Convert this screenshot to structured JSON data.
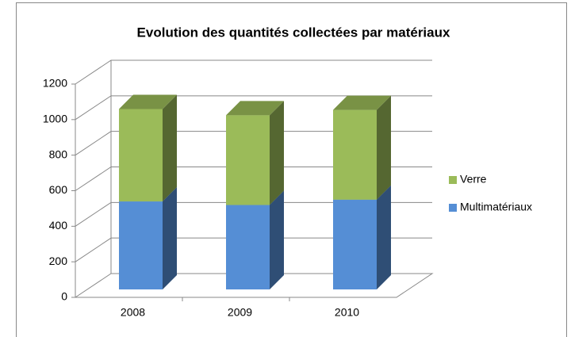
{
  "chart_data": {
    "type": "bar3d_stacked",
    "title": "Evolution des quantités collectées par matériaux",
    "categories": [
      "2008",
      "2009",
      "2010"
    ],
    "series": [
      {
        "name": "Multimatériaux",
        "color": "#558ed5",
        "values": [
          495,
          475,
          505
        ]
      },
      {
        "name": "Verre",
        "color": "#9bbb59",
        "values": [
          520,
          505,
          505
        ]
      }
    ],
    "ylim": [
      0,
      1200
    ],
    "yticks": [
      0,
      200,
      400,
      600,
      800,
      1000,
      1200
    ],
    "grid": true,
    "legend": "right"
  }
}
